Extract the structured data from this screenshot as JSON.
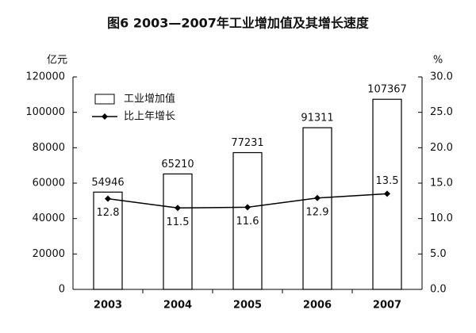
{
  "chart_data": {
    "type": "bar-line",
    "title": "图6  2003—2007年工业增加值及其增长速度",
    "y_unit": "亿元",
    "y2_unit": "%",
    "categories": [
      "2003",
      "2004",
      "2005",
      "2006",
      "2007"
    ],
    "series": [
      {
        "name": "工业增加值",
        "type": "bar",
        "color": "#ffffff",
        "values": [
          54946,
          65210,
          77231,
          91311,
          107367
        ]
      },
      {
        "name": "比上年增长",
        "type": "line",
        "axis": "y2",
        "color": "#000000",
        "values": [
          12.8,
          11.5,
          11.6,
          12.9,
          13.5
        ]
      }
    ],
    "ylim": [
      0,
      120000
    ],
    "yticks": [
      0,
      20000,
      40000,
      60000,
      80000,
      100000,
      120000
    ],
    "y2lim": [
      0,
      30
    ],
    "y2ticks": [
      {
        "value": 0,
        "label": "0.0"
      },
      {
        "value": 5,
        "label": "5.0"
      },
      {
        "value": 10,
        "label": "10.0"
      },
      {
        "value": 15,
        "label": "15.0"
      },
      {
        "value": 20,
        "label": "20.0"
      },
      {
        "value": 25,
        "label": "25.0"
      },
      {
        "value": 30,
        "label": "30.0"
      }
    ],
    "legend": "top-left"
  }
}
